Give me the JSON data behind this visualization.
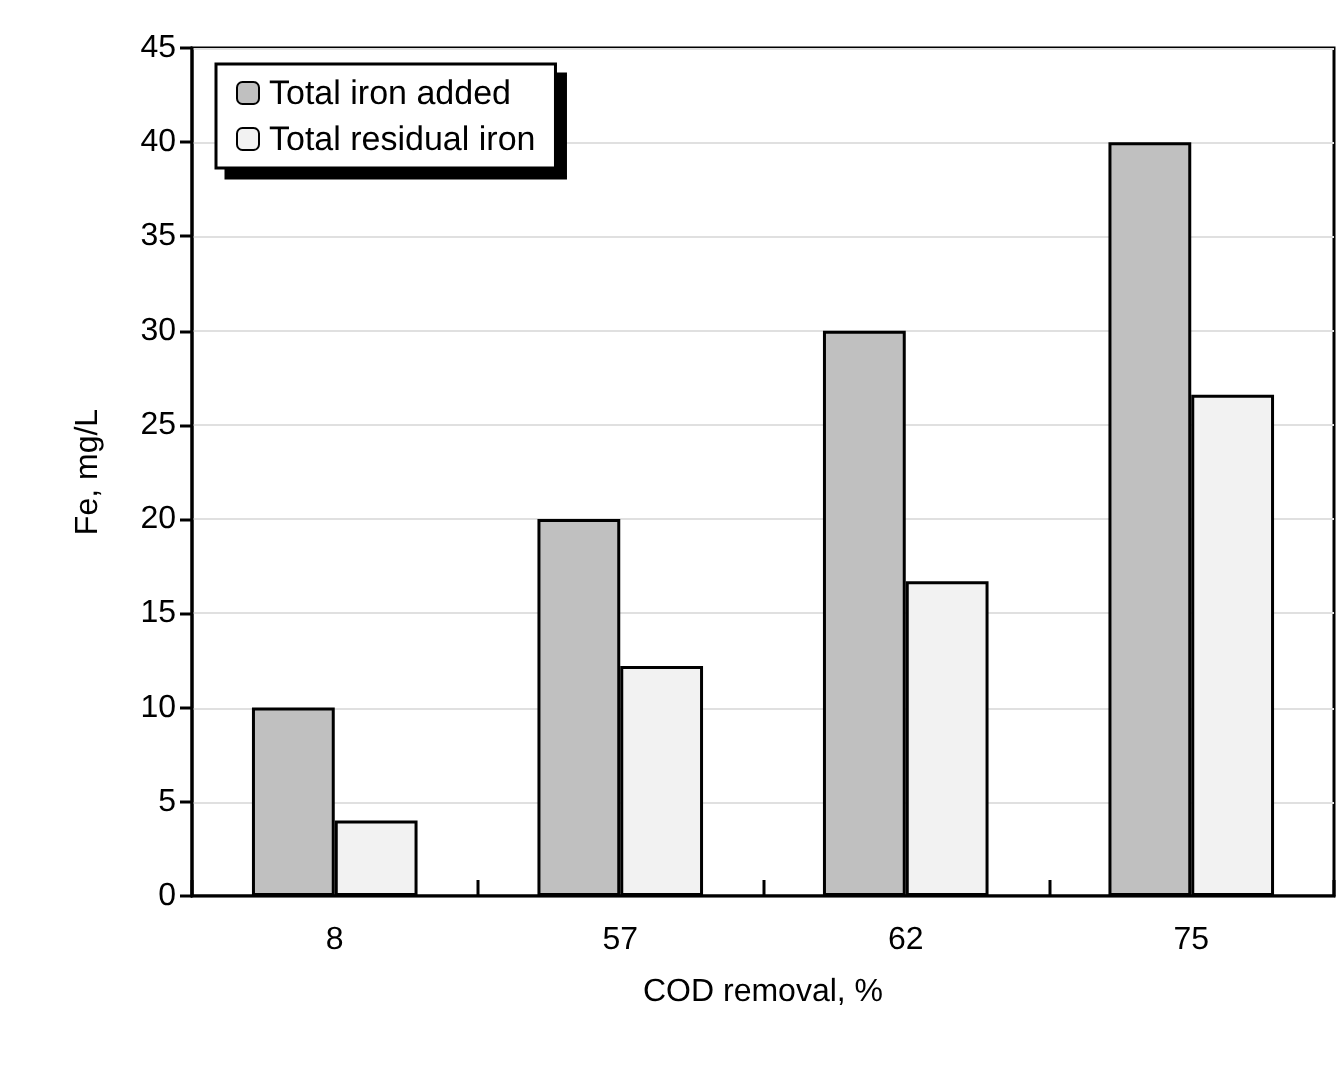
{
  "chart_data": {
    "type": "bar",
    "xlabel": "COD removal, %",
    "ylabel": "Fe, mg/L",
    "categories": [
      "8",
      "57",
      "62",
      "75"
    ],
    "series": [
      {
        "name": "Total iron added",
        "color": "#c0c0c0",
        "values": [
          10,
          20,
          30,
          40
        ]
      },
      {
        "name": "Total residual iron",
        "color": "#f2f2f2",
        "values": [
          4.0,
          12.2,
          16.7,
          26.6
        ]
      }
    ],
    "ylim": [
      0,
      45
    ],
    "yticks": [
      0,
      5,
      10,
      15,
      20,
      25,
      30,
      35,
      40,
      45
    ],
    "grid": "y",
    "legend": "top left"
  }
}
